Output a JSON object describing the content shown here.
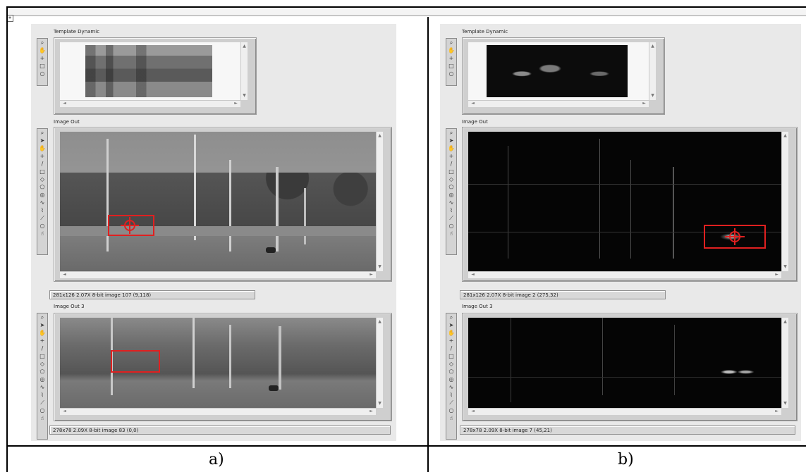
{
  "panel_a": {
    "template_label": "Template Dynamic",
    "image_out_label": "Image Out",
    "image_out3_label": "Image Out 3",
    "status_top": "281x126 2.07X 8-bit image 107    (9,118)",
    "status_bottom": "278x78 2.09X 8-bit image 83    (0,0)",
    "caption": "a)"
  },
  "panel_b": {
    "template_label": "Template Dynamic",
    "image_out_label": "Image Out",
    "image_out3_label": "Image Out 3",
    "status_top": "281x126 2.07X 8-bit image 2    (275,32)",
    "status_bottom": "278x78 2.09X 8-bit image 7    (45,21)",
    "caption": "b)"
  },
  "tool_icons_short": [
    "zoom-icon",
    "pan-icon",
    "point-icon",
    "rectangle-icon",
    "oval-icon"
  ],
  "tool_icons_long": [
    "zoom-icon",
    "pointer-icon",
    "pan-icon",
    "point-icon",
    "line-icon",
    "rectangle-icon",
    "rotated-rect-icon",
    "polygon-icon",
    "annulus-icon",
    "freehand-icon",
    "broken-line-icon",
    "polyline-icon",
    "oval-icon",
    "hand-icon"
  ],
  "colors": {
    "detection_box": "#e02020"
  }
}
